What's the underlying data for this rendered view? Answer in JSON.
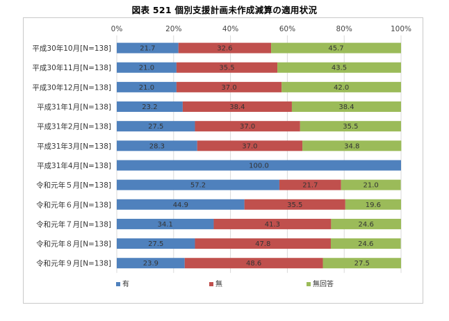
{
  "chart_data": {
    "type": "bar",
    "orientation": "horizontal",
    "stacked": "percent",
    "title": "図表 521 個別支援計画未作成減算の適用状況",
    "categories": [
      "平成30年10月[N=138]",
      "平成30年11月[N=138]",
      "平成30年12月[N=138]",
      "平成31年1月[N=138]",
      "平成31年2月[N=138]",
      "平成31年3月[N=138]",
      "平成31年4月[N=138]",
      "令和元年５月[N=138]",
      "令和元年６月[N=138]",
      "令和元年７月[N=138]",
      "令和元年８月[N=138]",
      "令和元年９月[N=138]"
    ],
    "series": [
      {
        "name": "有",
        "color": "#4f81bd",
        "values": [
          21.7,
          21.0,
          21.0,
          23.2,
          27.5,
          28.3,
          100.0,
          57.2,
          44.9,
          34.1,
          27.5,
          23.9
        ],
        "labels": [
          "21.7",
          "21.0",
          "21.0",
          "23.2",
          "27.5",
          "28.3",
          "100.0",
          "57.2",
          "44.9",
          "34.1",
          "27.5",
          "23.9"
        ]
      },
      {
        "name": "無",
        "color": "#c0504d",
        "values": [
          32.6,
          35.5,
          37.0,
          38.4,
          37.0,
          37.0,
          0,
          21.7,
          35.5,
          41.3,
          47.8,
          48.6
        ],
        "labels": [
          "32.6",
          "35.5",
          "37.0",
          "38.4",
          "37.0",
          "37.0",
          "",
          "21.7",
          "35.5",
          "41.3",
          "47.8",
          "48.6"
        ]
      },
      {
        "name": "無回答",
        "color": "#9bbb59",
        "values": [
          45.7,
          43.5,
          42.0,
          38.4,
          35.5,
          34.8,
          0,
          21.0,
          19.6,
          24.6,
          24.6,
          27.5
        ],
        "labels": [
          "45.7",
          "43.5",
          "42.0",
          "38.4",
          "35.5",
          "34.8",
          "",
          "21.0",
          "19.6",
          "24.6",
          "24.6",
          "27.5"
        ]
      }
    ],
    "xlim": [
      0,
      100
    ],
    "xticks": [
      "0%",
      "20%",
      "40%",
      "60%",
      "80%",
      "100%"
    ],
    "grid": true,
    "legend_position": "bottom"
  }
}
